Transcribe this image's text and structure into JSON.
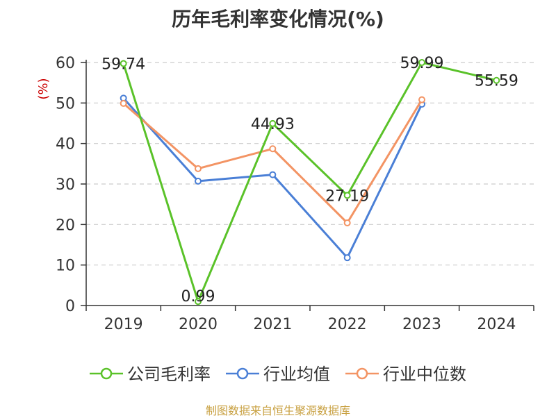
{
  "title": "历年毛利率变化情况(%)",
  "source": "制图数据来自恒生聚源数据库",
  "colors": {
    "axis": "#333333",
    "grid": "#cccccc",
    "ylabel": "#cc0000",
    "text": "#333333"
  },
  "chart_data": {
    "type": "line",
    "title": "历年毛利率变化情况(%)",
    "xlabel": "",
    "ylabel": "(%)",
    "ylim": [
      0,
      60
    ],
    "yticks": [
      0,
      10,
      20,
      30,
      40,
      50,
      60
    ],
    "grid": "horizontal dashed",
    "legend_position": "bottom",
    "categories": [
      "2019",
      "2020",
      "2021",
      "2022",
      "2023",
      "2024"
    ],
    "series": [
      {
        "name": "公司毛利率",
        "color": "#5ac229",
        "values": [
          59.74,
          0.99,
          44.93,
          27.19,
          59.99,
          55.59
        ],
        "labels": [
          "59.74",
          "0.99",
          "44.93",
          "27.19",
          "59.99",
          "55.59"
        ]
      },
      {
        "name": "行业均值",
        "color": "#4a7fd6",
        "values": [
          51.2,
          30.7,
          32.3,
          11.8,
          49.7,
          null
        ]
      },
      {
        "name": "行业中位数",
        "color": "#f39464",
        "values": [
          49.9,
          33.8,
          38.7,
          20.4,
          50.8,
          null
        ]
      }
    ]
  }
}
